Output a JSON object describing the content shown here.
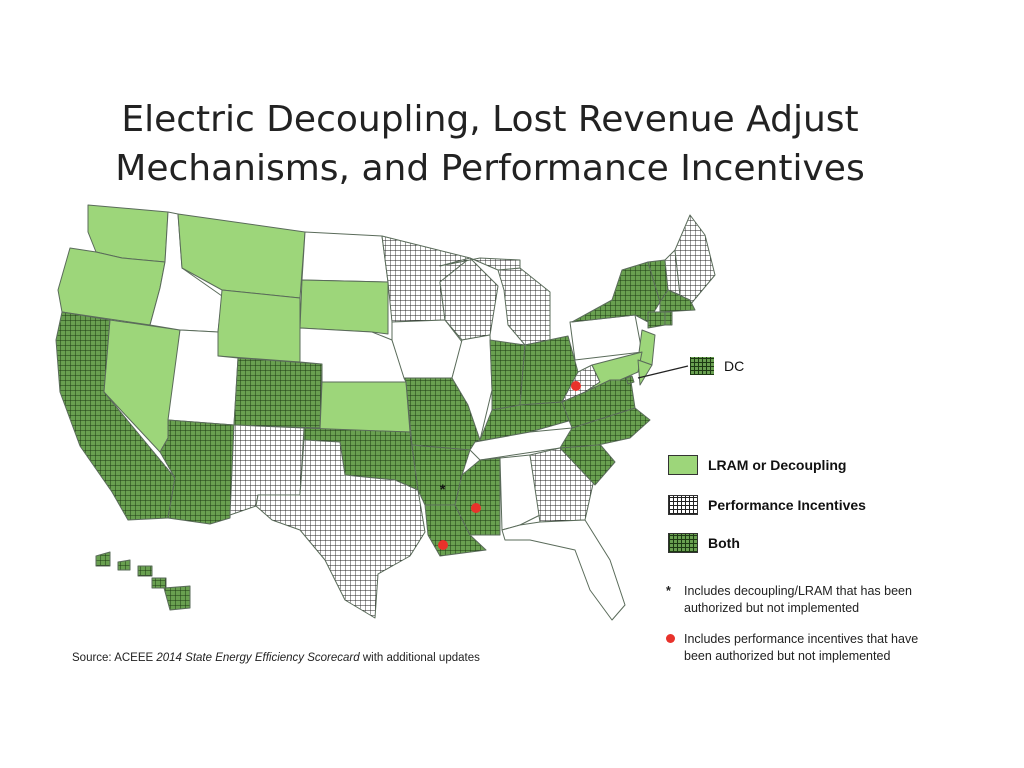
{
  "title": {
    "line1": "Electric Decoupling, Lost Revenue Adjust",
    "line2": "Mechanisms, and Performance Incentives"
  },
  "colors": {
    "lram": "#9dd67a",
    "both_fill": "#69a050",
    "both_grid": "#1d3a13",
    "perf_fill": "#ffffff",
    "none": "#ffffff",
    "border": "#5a6b5a",
    "red_dot": "#e8322b"
  },
  "legend": {
    "lram": "LRAM or Decoupling",
    "perf": "Performance Incentives",
    "both": "Both"
  },
  "notes": {
    "asterisk_mark": "*",
    "asterisk_line1": "Includes decoupling/LRAM that has been",
    "asterisk_line2": "authorized but not implemented",
    "dot_line1": "Includes performance incentives that have",
    "dot_line2": "been authorized but not implemented"
  },
  "dc_label": "DC",
  "source": {
    "prefix": "Source: ACEEE ",
    "italic": "2014 State Energy Efficiency Scorecard",
    "suffix": " with additional updates"
  },
  "states": [
    {
      "code": "WA",
      "category": "lram"
    },
    {
      "code": "OR",
      "category": "lram"
    },
    {
      "code": "CA",
      "category": "both"
    },
    {
      "code": "NV",
      "category": "lram"
    },
    {
      "code": "ID",
      "category": "none"
    },
    {
      "code": "MT",
      "category": "lram"
    },
    {
      "code": "WY",
      "category": "lram"
    },
    {
      "code": "UT",
      "category": "none"
    },
    {
      "code": "AZ",
      "category": "both"
    },
    {
      "code": "CO",
      "category": "both"
    },
    {
      "code": "NM",
      "category": "perf"
    },
    {
      "code": "ND",
      "category": "none"
    },
    {
      "code": "SD",
      "category": "lram"
    },
    {
      "code": "NE",
      "category": "none"
    },
    {
      "code": "KS",
      "category": "lram"
    },
    {
      "code": "OK",
      "category": "both"
    },
    {
      "code": "TX",
      "category": "perf"
    },
    {
      "code": "MN",
      "category": "perf"
    },
    {
      "code": "IA",
      "category": "none"
    },
    {
      "code": "MO",
      "category": "both"
    },
    {
      "code": "AR",
      "category": "both"
    },
    {
      "code": "LA",
      "category": "both"
    },
    {
      "code": "WI",
      "category": "perf"
    },
    {
      "code": "IL",
      "category": "none"
    },
    {
      "code": "MI",
      "category": "perf"
    },
    {
      "code": "IN",
      "category": "both"
    },
    {
      "code": "OH",
      "category": "both"
    },
    {
      "code": "KY",
      "category": "both"
    },
    {
      "code": "TN",
      "category": "none"
    },
    {
      "code": "MS",
      "category": "both"
    },
    {
      "code": "AL",
      "category": "none"
    },
    {
      "code": "GA",
      "category": "perf"
    },
    {
      "code": "FL",
      "category": "none"
    },
    {
      "code": "SC",
      "category": "both"
    },
    {
      "code": "NC",
      "category": "both"
    },
    {
      "code": "VA",
      "category": "both"
    },
    {
      "code": "WV",
      "category": "perf"
    },
    {
      "code": "PA",
      "category": "none"
    },
    {
      "code": "NY",
      "category": "both"
    },
    {
      "code": "NJ",
      "category": "lram"
    },
    {
      "code": "MD",
      "category": "lram"
    },
    {
      "code": "DE",
      "category": "lram"
    },
    {
      "code": "VT",
      "category": "both"
    },
    {
      "code": "NH",
      "category": "perf"
    },
    {
      "code": "ME",
      "category": "perf"
    },
    {
      "code": "MA",
      "category": "both"
    },
    {
      "code": "CT",
      "category": "both"
    },
    {
      "code": "RI",
      "category": "both"
    },
    {
      "code": "HI",
      "category": "both"
    },
    {
      "code": "DC",
      "category": "both"
    }
  ],
  "marked_states": {
    "asterisk": [
      "AR"
    ],
    "red_dot": [
      "WV",
      "MS",
      "LA"
    ]
  }
}
